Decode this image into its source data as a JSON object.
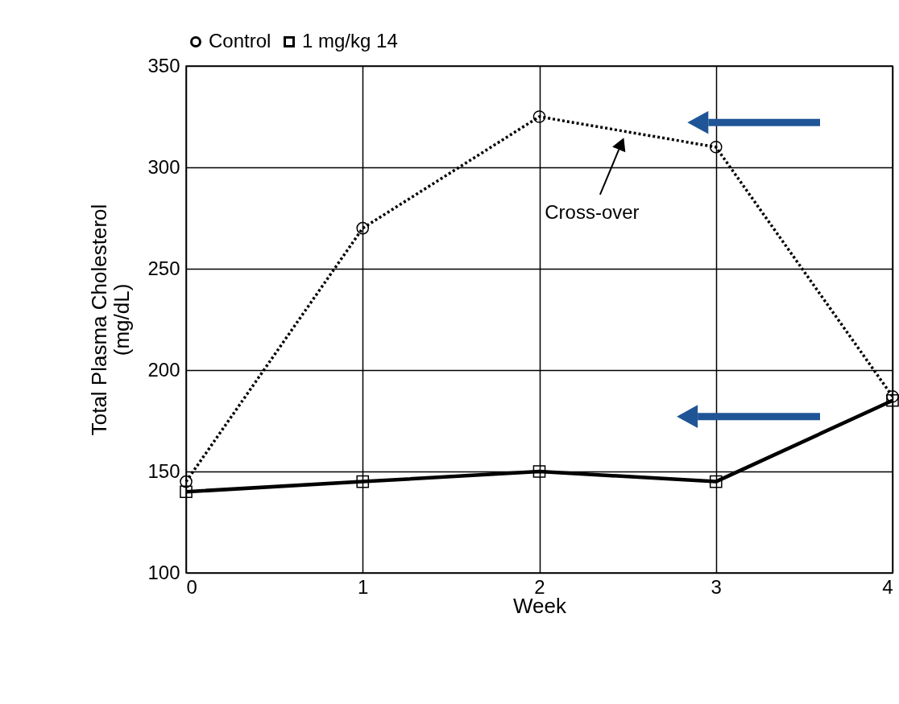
{
  "chart_data": {
    "type": "line",
    "xlabel": "Week",
    "ylabel": "Total Plasma Cholesterol\n(mg/dL)",
    "x": [
      0,
      1,
      2,
      3,
      4
    ],
    "series": [
      {
        "name": "Control",
        "color": "#000000",
        "values": [
          145,
          270,
          325,
          310,
          187
        ],
        "line_style": "dotted",
        "marker": "circle"
      },
      {
        "name": "1 mg/kg 14",
        "color": "#000000",
        "values": [
          140,
          145,
          150,
          145,
          185
        ],
        "line_style": "solid",
        "marker": "square"
      }
    ],
    "xlim": [
      0,
      4
    ],
    "xticks": [
      0,
      1,
      2,
      3,
      4
    ],
    "ylim": [
      100,
      350
    ],
    "yticks": [
      100,
      150,
      200,
      250,
      300,
      350
    ],
    "grid": true,
    "legend": "top",
    "annotations": [
      "Cross-over"
    ]
  }
}
